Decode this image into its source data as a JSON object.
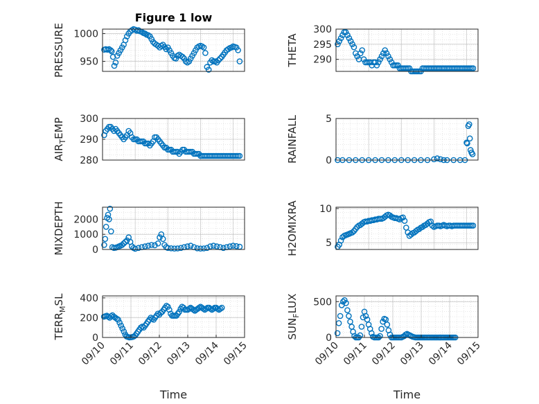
{
  "window": {
    "title": "Figure 1 low"
  },
  "colors": {
    "series": "#0072bd",
    "axis": "#262626",
    "grid": "#b9b9b9",
    "background": "#ffffff"
  },
  "chart_data": [
    {
      "type": "scatter",
      "panel": "pressure",
      "title": "Figure 1 low",
      "xlabel": "",
      "ylabel": "PRESSURE",
      "grid": true,
      "xlim": [
        0,
        4.35
      ],
      "ylim": [
        932,
        1008
      ],
      "xticks": [],
      "yticks": [
        950,
        1000
      ],
      "x": [
        0.05,
        0.1,
        0.15,
        0.2,
        0.25,
        0.28,
        0.32,
        0.36,
        0.4,
        0.45,
        0.5,
        0.55,
        0.6,
        0.65,
        0.7,
        0.75,
        0.8,
        0.85,
        0.9,
        0.95,
        1.0,
        1.05,
        1.1,
        1.15,
        1.2,
        1.25,
        1.3,
        1.35,
        1.4,
        1.45,
        1.5,
        1.55,
        1.6,
        1.65,
        1.7,
        1.75,
        1.8,
        1.85,
        1.9,
        1.95,
        2.0,
        2.05,
        2.1,
        2.15,
        2.2,
        2.25,
        2.3,
        2.35,
        2.4,
        2.45,
        2.5,
        2.55,
        2.6,
        2.65,
        2.7,
        2.75,
        2.8,
        2.85,
        2.9,
        2.95,
        3.0,
        3.05,
        3.1,
        3.15,
        3.2,
        3.25,
        3.3,
        3.35,
        3.4,
        3.45,
        3.5,
        3.55,
        3.6,
        3.65,
        3.7,
        3.75,
        3.8,
        3.85,
        3.9,
        3.95,
        4.0,
        4.05,
        4.1,
        4.15,
        4.2
      ],
      "y": [
        971,
        972,
        971,
        972,
        970,
        968,
        958,
        942,
        948,
        960,
        965,
        970,
        975,
        980,
        988,
        995,
        1000,
        1004,
        1006,
        1008,
        1007,
        1005,
        1006,
        1004,
        1003,
        1001,
        1000,
        998,
        997,
        995,
        990,
        985,
        982,
        980,
        978,
        975,
        978,
        980,
        976,
        972,
        975,
        970,
        965,
        960,
        956,
        955,
        960,
        962,
        960,
        958,
        955,
        950,
        948,
        950,
        955,
        960,
        965,
        970,
        975,
        977,
        978,
        977,
        975,
        965,
        940,
        935,
        948,
        952,
        950,
        950,
        948,
        952,
        955,
        958,
        962,
        966,
        970,
        972,
        974,
        975,
        977,
        976,
        975,
        970,
        950
      ],
      "note": "values read approximately from the scatter"
    },
    {
      "type": "scatter",
      "panel": "theta",
      "xlabel": "",
      "ylabel": "THETA",
      "grid": true,
      "xlim": [
        0,
        4.35
      ],
      "ylim": [
        286,
        300
      ],
      "xticks": [],
      "yticks": [
        290,
        295,
        300
      ],
      "x": [
        0.05,
        0.1,
        0.15,
        0.2,
        0.25,
        0.3,
        0.35,
        0.4,
        0.45,
        0.5,
        0.55,
        0.6,
        0.65,
        0.7,
        0.75,
        0.8,
        0.85,
        0.9,
        0.95,
        1.0,
        1.05,
        1.1,
        1.15,
        1.2,
        1.25,
        1.3,
        1.35,
        1.4,
        1.45,
        1.5,
        1.55,
        1.6,
        1.65,
        1.7,
        1.75,
        1.8,
        1.85,
        1.9,
        1.95,
        2.0,
        2.05,
        2.1,
        2.15,
        2.2,
        2.25,
        2.3,
        2.35,
        2.4,
        2.45,
        2.5,
        2.55,
        2.6,
        2.65,
        2.7,
        2.75,
        2.8,
        2.85,
        2.9,
        2.95,
        3.0,
        3.05,
        3.1,
        3.15,
        3.2,
        3.25,
        3.3,
        3.35,
        3.4,
        3.45,
        3.5,
        3.55,
        3.6,
        3.65,
        3.7,
        3.75,
        3.8,
        3.85,
        3.9,
        3.95,
        4.0,
        4.05,
        4.1,
        4.15,
        4.2
      ],
      "y": [
        295,
        296,
        297,
        298,
        299,
        299,
        298,
        297,
        296,
        295,
        294,
        292,
        291,
        290,
        292,
        293,
        290,
        289,
        289,
        289,
        289,
        288,
        289,
        289,
        288,
        289,
        290,
        291,
        292,
        293,
        292,
        291,
        290,
        289,
        288,
        288,
        288,
        288,
        287,
        287,
        287,
        287,
        287,
        287,
        287,
        286,
        286,
        286,
        286,
        286,
        286,
        286,
        287,
        287,
        287,
        287,
        287,
        287,
        287,
        287,
        287,
        287,
        287,
        287,
        287,
        287,
        287,
        287,
        287,
        287,
        287,
        287,
        287,
        287,
        287,
        287,
        287,
        287,
        287,
        287,
        287,
        287,
        287,
        287
      ],
      "note": "values read approximately from the scatter"
    },
    {
      "type": "scatter",
      "panel": "air_temp",
      "xlabel": "",
      "ylabel": "AIR_TEMP",
      "grid": true,
      "xlim": [
        0,
        4.35
      ],
      "ylim": [
        280,
        300
      ],
      "xticks": [],
      "yticks": [
        280,
        290,
        300
      ],
      "x": [
        0.05,
        0.1,
        0.15,
        0.2,
        0.25,
        0.3,
        0.35,
        0.4,
        0.45,
        0.5,
        0.55,
        0.6,
        0.65,
        0.7,
        0.75,
        0.8,
        0.85,
        0.9,
        0.95,
        1.0,
        1.05,
        1.1,
        1.15,
        1.2,
        1.25,
        1.3,
        1.35,
        1.4,
        1.45,
        1.5,
        1.55,
        1.6,
        1.65,
        1.7,
        1.75,
        1.8,
        1.85,
        1.9,
        1.95,
        2.0,
        2.05,
        2.1,
        2.15,
        2.2,
        2.25,
        2.3,
        2.35,
        2.4,
        2.45,
        2.5,
        2.55,
        2.6,
        2.65,
        2.7,
        2.75,
        2.8,
        2.85,
        2.9,
        2.95,
        3.0,
        3.05,
        3.1,
        3.15,
        3.2,
        3.25,
        3.3,
        3.35,
        3.4,
        3.45,
        3.5,
        3.55,
        3.6,
        3.65,
        3.7,
        3.75,
        3.8,
        3.85,
        3.9,
        3.95,
        4.0,
        4.05,
        4.1,
        4.15,
        4.2
      ],
      "y": [
        292,
        294,
        295,
        296,
        296,
        295,
        294,
        295,
        294,
        293,
        292,
        291,
        290,
        291,
        292,
        294,
        293,
        291,
        290,
        290,
        290,
        289,
        289,
        289,
        289,
        288,
        288,
        288,
        287,
        288,
        289,
        291,
        291,
        290,
        289,
        288,
        287,
        286,
        286,
        285,
        285,
        285,
        284,
        284,
        284,
        284,
        283,
        284,
        285,
        285,
        284,
        284,
        284,
        284,
        284,
        283,
        283,
        283,
        283,
        282,
        282,
        282,
        282,
        282,
        282,
        282,
        282,
        282,
        282,
        282,
        282,
        282,
        282,
        282,
        282,
        282,
        282,
        282,
        282,
        282,
        282,
        282,
        282,
        282
      ],
      "note": "values read approximately from the scatter"
    },
    {
      "type": "scatter",
      "panel": "rainfall",
      "xlabel": "",
      "ylabel": "RAINFALL",
      "grid": true,
      "xlim": [
        0,
        4.35
      ],
      "ylim": [
        0,
        5
      ],
      "xticks": [],
      "yticks": [
        0,
        5
      ],
      "x": [
        0.05,
        0.2,
        0.4,
        0.6,
        0.8,
        1.0,
        1.2,
        1.4,
        1.6,
        1.8,
        2.0,
        2.2,
        2.4,
        2.6,
        2.8,
        3.0,
        3.1,
        3.2,
        3.3,
        3.4,
        3.6,
        3.8,
        3.95,
        4.0,
        4.02,
        4.05,
        4.08,
        4.1,
        4.12,
        4.15,
        4.18
      ],
      "y": [
        0,
        0,
        0,
        0,
        0,
        0,
        0,
        0,
        0,
        0,
        0,
        0,
        0,
        0,
        0,
        0.1,
        0.2,
        0.1,
        0,
        0,
        0,
        0,
        0,
        2.1,
        2.0,
        4.1,
        4.3,
        2.6,
        1.2,
        0.9,
        0.7
      ],
      "note": "values read approximately from the scatter"
    },
    {
      "type": "scatter",
      "panel": "mixdepth",
      "xlabel": "",
      "ylabel": "MIXDEPTH",
      "grid": true,
      "xlim": [
        0,
        4.35
      ],
      "ylim": [
        0,
        2800
      ],
      "xticks": [],
      "yticks": [
        0,
        1000,
        2000
      ],
      "x": [
        0.05,
        0.08,
        0.11,
        0.14,
        0.17,
        0.2,
        0.23,
        0.26,
        0.3,
        0.35,
        0.4,
        0.45,
        0.5,
        0.55,
        0.6,
        0.65,
        0.7,
        0.75,
        0.8,
        0.85,
        0.9,
        0.95,
        1.0,
        1.1,
        1.2,
        1.3,
        1.4,
        1.5,
        1.6,
        1.7,
        1.75,
        1.8,
        1.85,
        1.9,
        1.95,
        2.0,
        2.1,
        2.2,
        2.3,
        2.4,
        2.5,
        2.6,
        2.7,
        2.8,
        2.9,
        3.0,
        3.1,
        3.2,
        3.3,
        3.4,
        3.5,
        3.6,
        3.7,
        3.8,
        3.9,
        4.0,
        4.1,
        4.2
      ],
      "y": [
        300,
        700,
        1500,
        2100,
        2300,
        2000,
        2700,
        1200,
        150,
        100,
        120,
        150,
        200,
        250,
        300,
        400,
        500,
        600,
        800,
        500,
        200,
        100,
        50,
        100,
        150,
        200,
        250,
        300,
        280,
        400,
        800,
        1000,
        700,
        300,
        150,
        100,
        80,
        60,
        70,
        100,
        150,
        200,
        250,
        150,
        80,
        60,
        70,
        100,
        200,
        250,
        200,
        150,
        100,
        150,
        200,
        250,
        220,
        180
      ],
      "note": "values read approximately from the scatter"
    },
    {
      "type": "scatter",
      "panel": "h2omixra",
      "xlabel": "",
      "ylabel": "H2OMIXRA",
      "grid": true,
      "xlim": [
        0,
        4.35
      ],
      "ylim": [
        4,
        10.2
      ],
      "xticks": [],
      "yticks": [
        5,
        10
      ],
      "x": [
        0.05,
        0.1,
        0.15,
        0.2,
        0.25,
        0.3,
        0.35,
        0.4,
        0.45,
        0.5,
        0.55,
        0.6,
        0.65,
        0.7,
        0.75,
        0.8,
        0.85,
        0.9,
        0.95,
        1.0,
        1.05,
        1.1,
        1.15,
        1.2,
        1.25,
        1.3,
        1.35,
        1.4,
        1.45,
        1.5,
        1.55,
        1.6,
        1.65,
        1.7,
        1.75,
        1.8,
        1.85,
        1.9,
        1.95,
        2.0,
        2.05,
        2.1,
        2.15,
        2.2,
        2.25,
        2.3,
        2.35,
        2.4,
        2.45,
        2.5,
        2.55,
        2.6,
        2.65,
        2.7,
        2.75,
        2.8,
        2.85,
        2.9,
        2.95,
        3.0,
        3.05,
        3.1,
        3.15,
        3.2,
        3.25,
        3.3,
        3.35,
        3.4,
        3.45,
        3.5,
        3.55,
        3.6,
        3.65,
        3.7,
        3.75,
        3.8,
        3.85,
        3.9,
        3.95,
        4.0,
        4.05,
        4.1,
        4.15,
        4.2
      ],
      "y": [
        4.4,
        4.7,
        5.3,
        5.8,
        6.0,
        6.1,
        6.2,
        6.3,
        6.4,
        6.5,
        6.7,
        7.0,
        7.3,
        7.5,
        7.6,
        7.8,
        8.0,
        8.1,
        8.1,
        8.2,
        8.2,
        8.3,
        8.3,
        8.4,
        8.4,
        8.5,
        8.5,
        8.5,
        8.6,
        8.8,
        9.0,
        9.1,
        9.0,
        8.8,
        8.7,
        8.6,
        8.6,
        8.5,
        8.4,
        8.6,
        8.7,
        8.2,
        7.2,
        6.5,
        6.0,
        6.2,
        6.4,
        6.5,
        6.7,
        6.9,
        7.0,
        7.2,
        7.3,
        7.5,
        7.6,
        7.8,
        8.0,
        8.1,
        7.5,
        7.3,
        7.4,
        7.5,
        7.5,
        7.4,
        7.5,
        7.6,
        7.5,
        7.4,
        7.5,
        7.5,
        7.4,
        7.5,
        7.5,
        7.5,
        7.5,
        7.5,
        7.5,
        7.5,
        7.5,
        7.5,
        7.5,
        7.5,
        7.5,
        7.5
      ],
      "note": "values read approximately from the scatter"
    },
    {
      "type": "scatter",
      "panel": "terr_msl",
      "xlabel": "Time",
      "ylabel": "TERR_MSL",
      "grid": true,
      "xlim": [
        0,
        5
      ],
      "ylim": [
        0,
        420
      ],
      "xticks": [
        "09/10",
        "09/11",
        "09/12",
        "09/13",
        "09/14",
        "09/15"
      ],
      "yticks": [
        0,
        200,
        400
      ],
      "x": [
        0.05,
        0.1,
        0.15,
        0.2,
        0.25,
        0.3,
        0.35,
        0.4,
        0.45,
        0.5,
        0.55,
        0.6,
        0.65,
        0.7,
        0.75,
        0.8,
        0.85,
        0.9,
        0.95,
        1.0,
        1.05,
        1.1,
        1.15,
        1.2,
        1.25,
        1.3,
        1.35,
        1.4,
        1.45,
        1.5,
        1.55,
        1.6,
        1.65,
        1.7,
        1.75,
        1.8,
        1.85,
        1.9,
        1.95,
        2.0,
        2.05,
        2.1,
        2.15,
        2.2,
        2.25,
        2.3,
        2.35,
        2.4,
        2.45,
        2.5,
        2.55,
        2.6,
        2.65,
        2.7,
        2.75,
        2.8,
        2.85,
        2.9,
        2.95,
        3.0,
        3.05,
        3.1,
        3.15,
        3.2,
        3.25,
        3.3,
        3.35,
        3.4,
        3.45,
        3.5,
        3.55,
        3.6,
        3.65,
        3.7,
        3.75,
        3.8,
        3.85,
        3.9,
        3.95,
        4.0,
        4.05,
        4.1,
        4.15,
        4.2
      ],
      "y": [
        210,
        215,
        220,
        210,
        200,
        215,
        225,
        210,
        200,
        190,
        180,
        150,
        120,
        90,
        60,
        30,
        10,
        5,
        0,
        2,
        5,
        10,
        20,
        40,
        60,
        80,
        100,
        110,
        100,
        120,
        140,
        160,
        180,
        200,
        190,
        180,
        200,
        220,
        240,
        230,
        250,
        260,
        280,
        300,
        320,
        310,
        280,
        240,
        220,
        220,
        220,
        220,
        240,
        260,
        290,
        310,
        300,
        280,
        280,
        280,
        290,
        300,
        290,
        280,
        270,
        280,
        290,
        300,
        310,
        300,
        290,
        280,
        290,
        300,
        300,
        290,
        280,
        290,
        300,
        300,
        290,
        280,
        290,
        300
      ],
      "note": "values read approximately from the scatter"
    },
    {
      "type": "scatter",
      "panel": "sun_flux",
      "xlabel": "Time",
      "ylabel": "SUN_FLUX",
      "grid": true,
      "xlim": [
        0,
        5
      ],
      "ylim": [
        0,
        580
      ],
      "xticks": [
        "09/10",
        "09/11",
        "09/12",
        "09/13",
        "09/14",
        "09/15"
      ],
      "yticks": [
        0,
        500
      ],
      "x": [
        0.05,
        0.1,
        0.15,
        0.2,
        0.25,
        0.3,
        0.35,
        0.4,
        0.45,
        0.5,
        0.55,
        0.6,
        0.65,
        0.7,
        0.75,
        0.8,
        0.85,
        0.9,
        0.95,
        1.0,
        1.05,
        1.1,
        1.15,
        1.2,
        1.25,
        1.3,
        1.35,
        1.4,
        1.45,
        1.5,
        1.55,
        1.6,
        1.65,
        1.7,
        1.75,
        1.8,
        1.85,
        1.9,
        1.95,
        2.0,
        2.05,
        2.1,
        2.15,
        2.2,
        2.25,
        2.3,
        2.35,
        2.4,
        2.45,
        2.5,
        2.55,
        2.6,
        2.65,
        2.7,
        2.75,
        2.8,
        2.85,
        2.9,
        2.95,
        3.0,
        3.05,
        3.1,
        3.15,
        3.2,
        3.25,
        3.3,
        3.35,
        3.4,
        3.45,
        3.5,
        3.55,
        3.6,
        3.65,
        3.7,
        3.75,
        3.8,
        3.85,
        3.9,
        3.95,
        4.0,
        4.05,
        4.1,
        4.15,
        4.2
      ],
      "y": [
        60,
        200,
        300,
        450,
        500,
        520,
        480,
        380,
        300,
        220,
        150,
        80,
        20,
        0,
        0,
        0,
        30,
        150,
        280,
        360,
        300,
        250,
        180,
        120,
        60,
        10,
        0,
        0,
        0,
        0,
        20,
        120,
        220,
        260,
        250,
        180,
        100,
        40,
        0,
        0,
        0,
        0,
        0,
        0,
        0,
        0,
        10,
        20,
        40,
        50,
        40,
        30,
        20,
        10,
        5,
        0,
        0,
        0,
        0,
        0,
        0,
        0,
        0,
        0,
        0,
        0,
        0,
        0,
        0,
        0,
        0,
        0,
        0,
        0,
        0,
        0,
        0,
        0,
        0,
        0,
        0,
        0,
        0,
        0
      ],
      "note": "values read approximately from the scatter"
    }
  ]
}
